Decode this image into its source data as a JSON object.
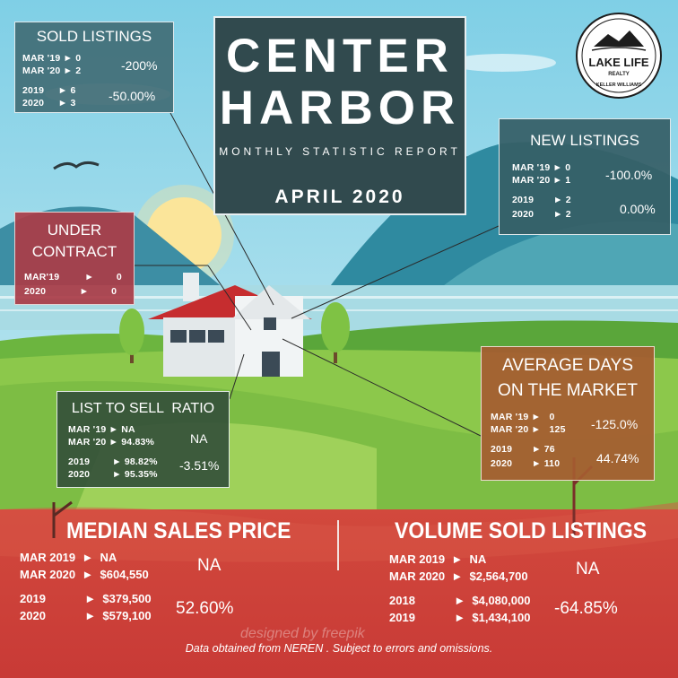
{
  "title": {
    "line1": "CENTER",
    "line2": "HARBOR",
    "subtitle": "MONTHLY STATISTIC REPORT",
    "date": "APRIL 2020"
  },
  "logo": {
    "line1": "LAKE LIFE",
    "line2": "REALTY",
    "arc_text": "KELLER WILLIAMS"
  },
  "sold_listings": {
    "title": "SOLD LISTINGS",
    "rows": [
      {
        "label": "MAR '19",
        "arrow": "►",
        "value": "0"
      },
      {
        "label": "MAR '20",
        "arrow": "►",
        "value": "2"
      },
      {
        "label": "2019",
        "arrow": "►",
        "value": "6"
      },
      {
        "label": "2020",
        "arrow": "►",
        "value": "3"
      }
    ],
    "pct_month": "-200%",
    "pct_year": "-50.00%"
  },
  "new_listings": {
    "title": "NEW LISTINGS",
    "rows": [
      {
        "label": "MAR '19",
        "arrow": "►",
        "value": "0"
      },
      {
        "label": "MAR '20",
        "arrow": "►",
        "value": "1"
      },
      {
        "label": "2019",
        "arrow": "►",
        "value": "2"
      },
      {
        "label": "2020",
        "arrow": "►",
        "value": "2"
      }
    ],
    "pct_month": "-100.0%",
    "pct_year": "0.00%"
  },
  "under_contract": {
    "title_line1": "UNDER",
    "title_line2": "CONTRACT",
    "rows": [
      {
        "label": "MAR'19",
        "arrow": "►",
        "value": "0"
      },
      {
        "label": "2020",
        "arrow": "►",
        "value": "0"
      }
    ]
  },
  "list_to_sell": {
    "title": "LIST TO SELL  RATIO",
    "rows": [
      {
        "label": "MAR '19",
        "arrow": "►",
        "value": "NA"
      },
      {
        "label": "MAR '20",
        "arrow": "►",
        "value": "94.83%"
      },
      {
        "label": "2019",
        "arrow": "►",
        "value": "98.82%"
      },
      {
        "label": "2020",
        "arrow": "►",
        "value": "95.35%"
      }
    ],
    "pct_month": "NA",
    "pct_year": "-3.51%"
  },
  "avg_days": {
    "title_line1": "AVERAGE DAYS",
    "title_line2": "ON THE MARKET",
    "rows": [
      {
        "label": "MAR '19",
        "arrow": "►",
        "value": "0"
      },
      {
        "label": "MAR '20",
        "arrow": "►",
        "value": "125"
      },
      {
        "label": "2019",
        "arrow": "►",
        "value": "76"
      },
      {
        "label": "2020",
        "arrow": "►",
        "value": "110"
      }
    ],
    "pct_month": "-125.0%",
    "pct_year": "44.74%"
  },
  "median_sales": {
    "title": "MEDIAN SALES PRICE",
    "rows": [
      {
        "label": "MAR 2019",
        "arrow": "►",
        "value": "NA"
      },
      {
        "label": "MAR 2020",
        "arrow": "►",
        "value": "$604,550"
      },
      {
        "label": "2019",
        "arrow": "►",
        "value": "$379,500"
      },
      {
        "label": "2020",
        "arrow": "►",
        "value": "$579,100"
      }
    ],
    "pct_month": "NA",
    "pct_year": "52.60%"
  },
  "volume_sold": {
    "title": "VOLUME SOLD LISTINGS",
    "rows": [
      {
        "label": "MAR 2019",
        "arrow": "►",
        "value": "NA"
      },
      {
        "label": "MAR 2020",
        "arrow": "►",
        "value": "$2,564,700"
      },
      {
        "label": "2018",
        "arrow": "►",
        "value": "$4,080,000"
      },
      {
        "label": "2019",
        "arrow": "►",
        "value": "$1,434,100"
      }
    ],
    "pct_month": "NA",
    "pct_year": "-64.85%"
  },
  "footer": {
    "note": "Data obtained  from NEREN . Subject to errors  and omissions.",
    "watermark": "designed by  freepik"
  },
  "colors": {
    "sky": "#8fd3e6",
    "title_bg": "#314a4e",
    "bottom_band": "#c9453a",
    "roof": "#c62d2f",
    "grass": "#6cb53f"
  }
}
